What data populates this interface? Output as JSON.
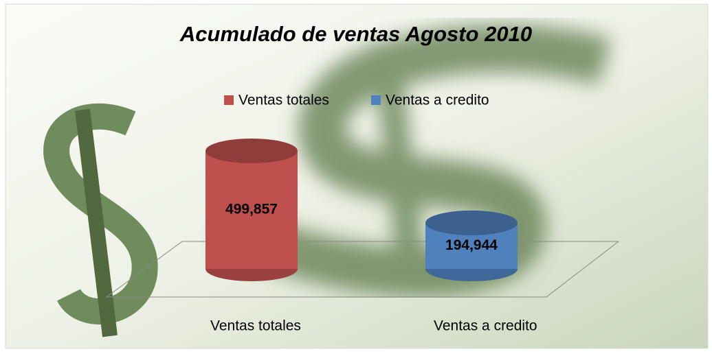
{
  "chart_data": {
    "type": "cylinder",
    "title": "Acumulado de ventas Agosto 2010",
    "categories": [
      "Ventas totales",
      "Ventas a credito"
    ],
    "series": [
      {
        "name": "Ventas totales",
        "color": "#c0504d",
        "values": [
          499857,
          null
        ],
        "value_labels": [
          "499,857",
          null
        ]
      },
      {
        "name": "Ventas a credito",
        "color": "#4f81bd",
        "values": [
          null,
          194944
        ],
        "value_labels": [
          null,
          "194,944"
        ]
      }
    ],
    "legend": "top"
  }
}
